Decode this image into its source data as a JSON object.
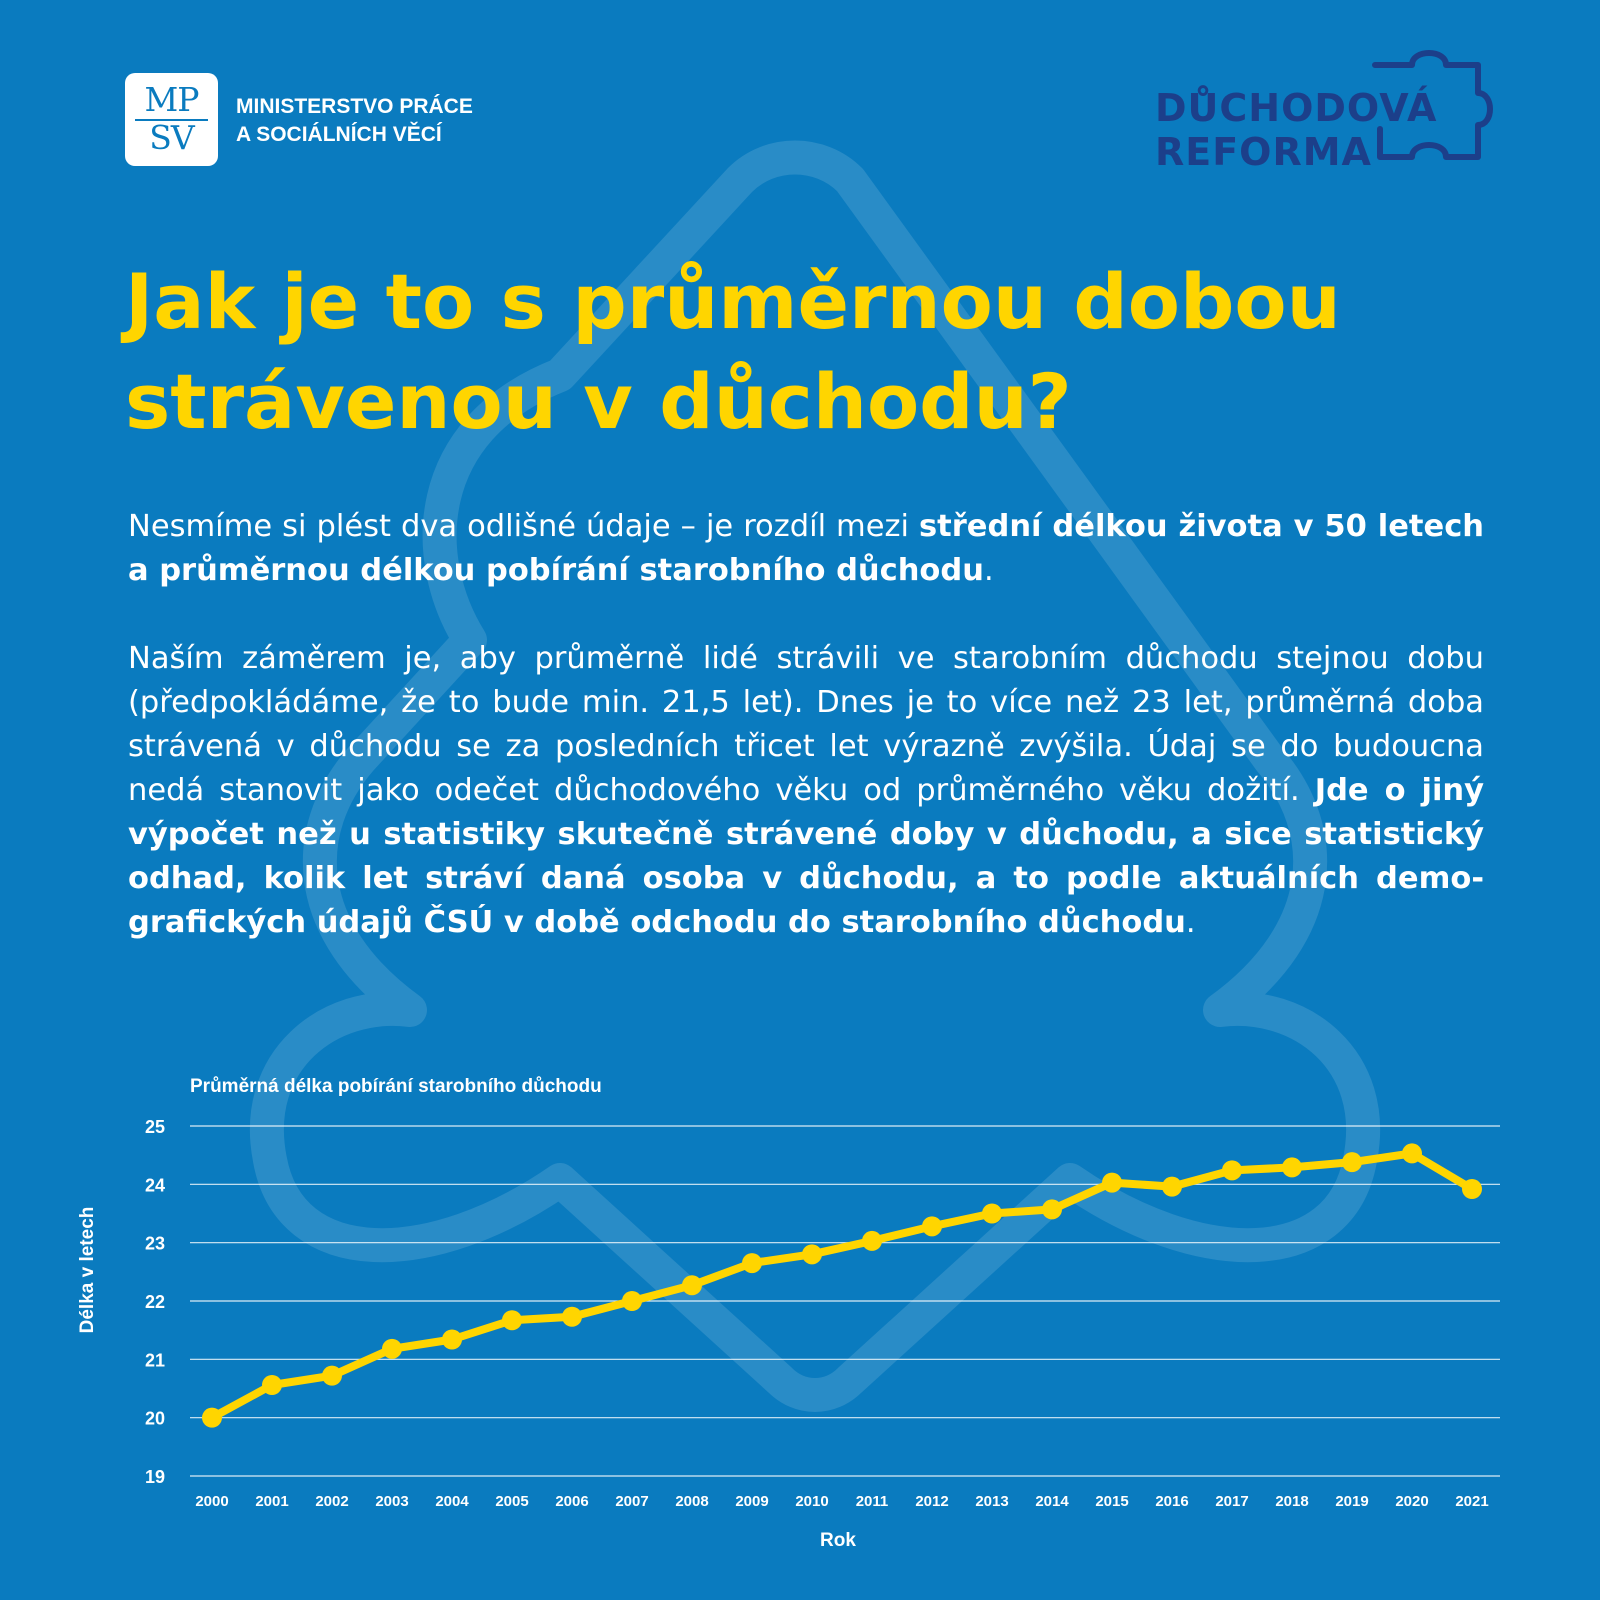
{
  "header": {
    "logo_mark_top": "MP",
    "logo_mark_bottom": "SV",
    "ministry_line1": "MINISTERSTVO PRÁCE",
    "ministry_line2": "A SOCIÁLNÍCH VĚCÍ",
    "reform_line1": "DŮCHODOVÁ",
    "reform_line2": "REFORMA"
  },
  "title_line1": "Jak je to s průměrnou dobou",
  "title_line2": "strávenou v důchodu?",
  "paragraph1": {
    "normal1": "Nesmíme si plést dva odlišné údaje – je rozdíl mezi ",
    "bold1": "střední délkou života v 50 letech a průměrnou délkou pobírání starobního důchodu",
    "normal2": "."
  },
  "paragraph2": {
    "normal1": "Naším záměrem je, aby průměrně lidé strávili ve starobním důchodu stejnou dobu (předpokládáme, že to bude min. 21,5 let). Dnes je to více než 23 let, průměrná doba strávená v důchodu se za posledních třicet let výrazně zvýšila. Údaj se do budoucna nedá stanovit jako odečet důcho­dového věku od průměrného věku dožití. ",
    "bold1": "Jde o jiný výpočet než u sta­tistiky skutečně strávené doby v důchodu, a sice statistický odhad, kolik let stráví daná osoba v důchodu, a to podle aktuálních demo­grafických údajů ČSÚ v době odchodu do starobního důchodu",
    "normal2": "."
  },
  "colors": {
    "background": "#0a7bbf",
    "title": "#ffd500",
    "line": "#ffd500",
    "text": "#ffffff",
    "reform": "#1c3f8a"
  },
  "chart_data": {
    "type": "line",
    "title": "Průměrná délka pobírání starobního důchodu",
    "xlabel": "Rok",
    "ylabel": "Délka v letech",
    "ylim": [
      19,
      25
    ],
    "yticks": [
      19,
      20,
      21,
      22,
      23,
      24,
      25
    ],
    "grid": true,
    "categories": [
      "2000",
      "2001",
      "2002",
      "2003",
      "2004",
      "2005",
      "2006",
      "2007",
      "2008",
      "2009",
      "2010",
      "2011",
      "2012",
      "2013",
      "2014",
      "2015",
      "2016",
      "2017",
      "2018",
      "2019",
      "2020",
      "2021"
    ],
    "series": [
      {
        "values": [
          20.0,
          20.56,
          20.72,
          21.18,
          21.34,
          21.67,
          21.73,
          22.0,
          22.27,
          22.65,
          22.8,
          23.03,
          23.28,
          23.5,
          23.57,
          24.03,
          23.96,
          24.24,
          24.29,
          24.38,
          24.53,
          23.92
        ]
      }
    ]
  }
}
